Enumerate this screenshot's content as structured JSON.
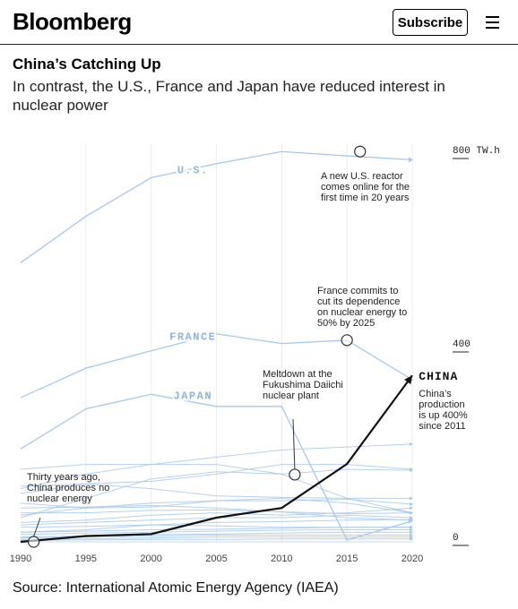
{
  "header": {
    "logo": "Bloomberg",
    "subscribe_label": "Subscribe",
    "menu_icon": "hamburger-menu-icon"
  },
  "title": "China’s Catching Up",
  "subtitle": "In contrast, the U.S., France and Japan have reduced interest in nuclear power",
  "source": "Source: International Atomic Energy Agency (IAEA)",
  "chart_data": {
    "type": "line",
    "x": [
      1990,
      1995,
      2000,
      2005,
      2010,
      2015,
      2020
    ],
    "x_ticks": [
      "1990",
      "1995",
      "2000",
      "2005",
      "2010",
      "2015",
      "2020"
    ],
    "y_ticks": [
      "800 TW.h",
      "400",
      "0"
    ],
    "ylim": [
      0,
      800
    ],
    "y_unit": "TW.h",
    "colors": {
      "highlight": "#111111",
      "muted": "#a8c8ea",
      "label_blue": "#8fb3dc"
    },
    "highlight_series": {
      "name": "CHINA",
      "values": [
        0,
        12,
        16,
        50,
        70,
        161,
        344
      ]
    },
    "labeled_series": [
      {
        "name": "U.S.",
        "values": [
          577,
          673,
          753,
          782,
          807,
          798,
          790
        ]
      },
      {
        "name": "FRANCE",
        "values": [
          298,
          359,
          395,
          430,
          410,
          417,
          335
        ]
      },
      {
        "name": "JAPAN",
        "values": [
          192,
          275,
          305,
          280,
          280,
          4,
          43
        ]
      }
    ],
    "other_series": [
      {
        "values": [
          110,
          140,
          160,
          175,
          190,
          196,
          202
        ]
      },
      {
        "values": [
          115,
          120,
          125,
          140,
          160,
          160,
          150
        ]
      },
      {
        "values": [
          50,
          90,
          130,
          145,
          140,
          150,
          148
        ]
      },
      {
        "values": [
          100,
          120,
          110,
          95,
          92,
          90,
          90
        ]
      },
      {
        "values": [
          80,
          70,
          80,
          85,
          90,
          80,
          60
        ]
      },
      {
        "values": [
          150,
          160,
          160,
          160,
          140,
          90,
          60
        ]
      },
      {
        "values": [
          55,
          70,
          72,
          85,
          85,
          88,
          78
        ]
      },
      {
        "values": [
          70,
          72,
          75,
          70,
          62,
          50,
          45
        ]
      },
      {
        "values": [
          60,
          60,
          65,
          66,
          62,
          58,
          60
        ]
      },
      {
        "values": [
          40,
          45,
          55,
          60,
          55,
          60,
          70
        ]
      },
      {
        "values": [
          35,
          40,
          45,
          50,
          50,
          55,
          50
        ]
      },
      {
        "values": [
          20,
          25,
          35,
          40,
          42,
          45,
          46
        ]
      },
      {
        "values": [
          30,
          32,
          35,
          33,
          30,
          30,
          30
        ]
      },
      {
        "values": [
          20,
          22,
          25,
          26,
          28,
          30,
          30
        ]
      },
      {
        "values": [
          15,
          18,
          20,
          22,
          24,
          25,
          25
        ]
      },
      {
        "values": [
          10,
          12,
          15,
          16,
          18,
          20,
          20
        ]
      },
      {
        "values": [
          8,
          10,
          12,
          14,
          14,
          14,
          14
        ]
      },
      {
        "values": [
          5,
          6,
          8,
          10,
          10,
          10,
          10
        ]
      },
      {
        "values": [
          3,
          4,
          5,
          5,
          6,
          6,
          6
        ]
      }
    ],
    "annotations": [
      {
        "text": [
          "A new U.S. reactor",
          "comes online for the",
          "first time in 20 years"
        ],
        "x": 2016,
        "y": 807
      },
      {
        "text": [
          "France commits to",
          "cut its dependence",
          "on nuclear energy to",
          "50% by 2025"
        ],
        "x": 2015,
        "y": 417
      },
      {
        "text": [
          "Meltdown at the",
          "Fukushima Daiichi",
          "nuclear plant"
        ],
        "x": 2011,
        "y": 139
      },
      {
        "text": [
          "Thirty years ago,",
          "China produces no",
          "nuclear energy"
        ],
        "x": 1991,
        "y": 0
      }
    ],
    "china_note": [
      "China’s",
      "production",
      "is up 400%",
      "since 2011"
    ]
  }
}
